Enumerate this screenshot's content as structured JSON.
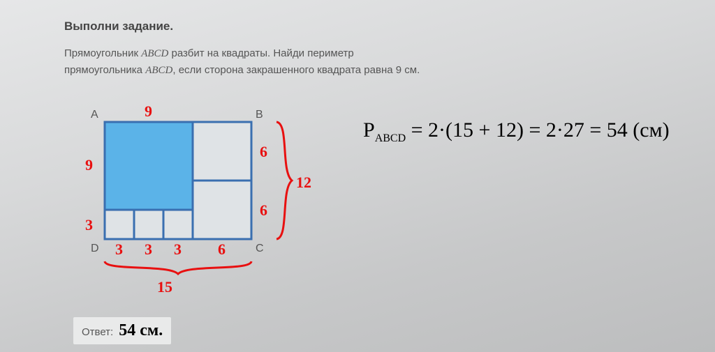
{
  "task": {
    "title": "Выполни задание.",
    "line1_a": "Прямоугольник ",
    "line1_b": "ABCD",
    "line1_c": " разбит на квадраты. Найди периметр",
    "line2_a": "прямоугольника ",
    "line2_b": "ABCD",
    "line2_c": ", если сторона закрашенного квадрата равна 9 см."
  },
  "diagram": {
    "vertices": {
      "A": "A",
      "B": "B",
      "C": "C",
      "D": "D"
    },
    "printed_stroke": "#3a6fb0",
    "printed_fill": "#5bb3e8",
    "printed_bg": "#dfe3e6",
    "red": "#e81010",
    "scale": 14,
    "rect_w_units": 15,
    "rect_h_units": 12,
    "shaded_side_units": 9,
    "small_side_units": 3,
    "right_side_units": 6,
    "labels_red": {
      "top9": "9",
      "left9": "9",
      "left3": "3",
      "bot3a": "3",
      "bot3b": "3",
      "bot3c": "3",
      "bot6": "6",
      "right6a": "6",
      "right6b": "6",
      "right12": "12",
      "bot15": "15"
    }
  },
  "answer": {
    "label": "Ответ:",
    "value": "54 см."
  },
  "formula": {
    "P": "P",
    "sub": "ABCD",
    "expr": " = 2·(15 + 12) = 2·27 = 54 (см)"
  }
}
